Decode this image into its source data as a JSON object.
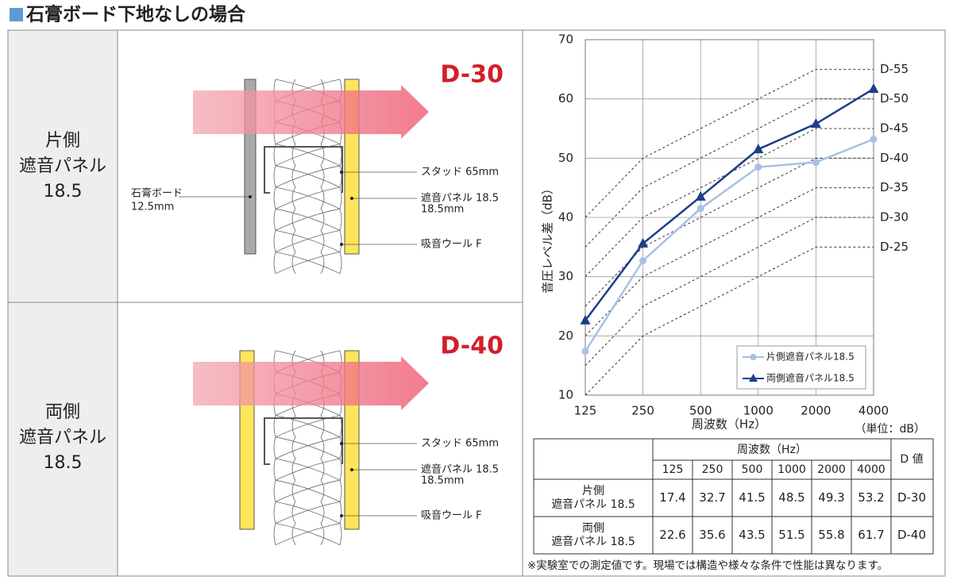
{
  "header": {
    "title": "石膏ボード下地なしの場合"
  },
  "panels": [
    {
      "label": [
        "片側",
        "遮音パネル",
        "18.5"
      ],
      "rating": "D-30",
      "board_callout": [
        "石膏ボード",
        "12.5mm"
      ],
      "stud_callout": "スタッド 65mm",
      "panel_callout": [
        "遮音パネル 18.5",
        "18.5mm"
      ],
      "wool_callout": "吸音ウール F"
    },
    {
      "label": [
        "両側",
        "遮音パネル",
        "18.5"
      ],
      "rating": "D-40",
      "stud_callout": "スタッド 65mm",
      "panel_callout": [
        "遮音パネル 18.5",
        "18.5mm"
      ],
      "wool_callout": "吸音ウール F"
    }
  ],
  "chart_data": {
    "type": "line",
    "x_label": "周波数（Hz）",
    "y_label": "音圧レベル差（dB）",
    "categories": [
      "125",
      "250",
      "500",
      "1000",
      "2000",
      "4000"
    ],
    "ylim": [
      10,
      70
    ],
    "yticks": [
      10,
      20,
      30,
      40,
      50,
      60,
      70
    ],
    "grid": true,
    "legend": "bottom-right",
    "series": [
      {
        "name": "片側遮音パネル18.5",
        "color": "#a7c0e5",
        "marker": "circle",
        "values": [
          17.4,
          32.7,
          41.5,
          48.5,
          49.3,
          53.2
        ]
      },
      {
        "name": "両側遮音パネル18.5",
        "color": "#1c3f8a",
        "marker": "triangle",
        "values": [
          22.6,
          35.6,
          43.5,
          51.5,
          55.8,
          61.7
        ]
      }
    ],
    "reference_curves": [
      {
        "name": "D-55",
        "values": [
          40,
          50,
          55,
          60,
          65,
          65
        ]
      },
      {
        "name": "D-50",
        "values": [
          35,
          45,
          50,
          55,
          60,
          60
        ]
      },
      {
        "name": "D-45",
        "values": [
          30,
          40,
          45,
          50,
          55,
          55
        ]
      },
      {
        "name": "D-40",
        "values": [
          25,
          35,
          40,
          45,
          50,
          50
        ]
      },
      {
        "name": "D-35",
        "values": [
          20,
          30,
          35,
          40,
          45,
          45
        ]
      },
      {
        "name": "D-30",
        "values": [
          15,
          25,
          30,
          35,
          40,
          40
        ]
      },
      {
        "name": "D-25",
        "values": [
          10,
          20,
          25,
          30,
          35,
          35
        ]
      }
    ]
  },
  "table": {
    "unit": "（単位：dB）",
    "freq_header": "周波数（Hz）",
    "d_header": "D 値",
    "rows": [
      {
        "label": [
          "片側",
          "遮音パネル 18.5"
        ]
      },
      {
        "label": [
          "両側",
          "遮音パネル 18.5"
        ]
      }
    ]
  },
  "note": "※実験室での測定値です。現場では構造や様々な条件で性能は異なります。"
}
